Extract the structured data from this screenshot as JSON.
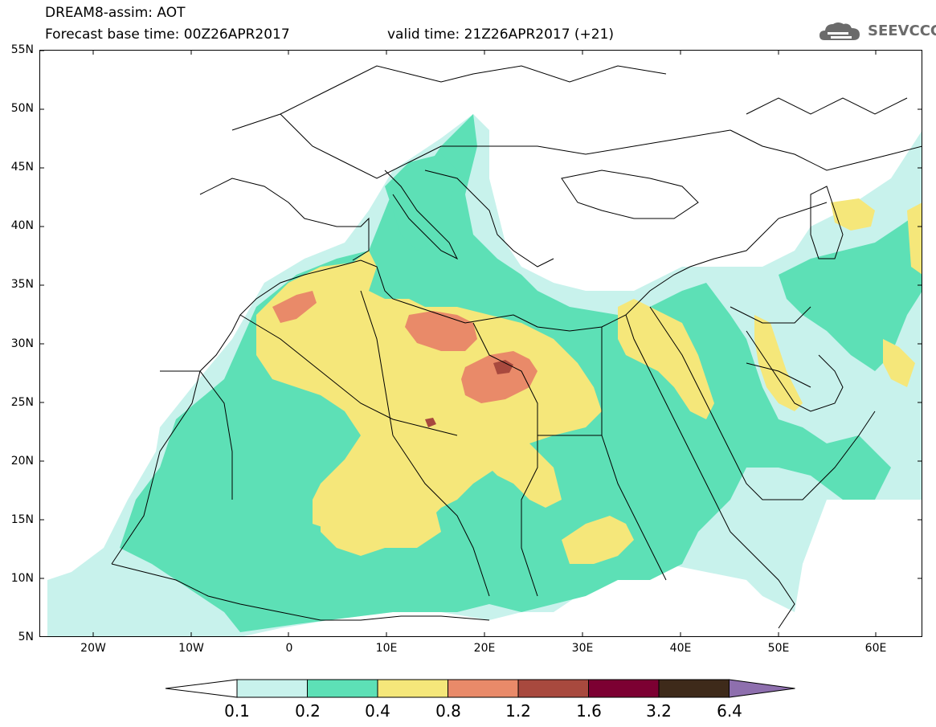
{
  "header": {
    "title_line1": "DREAM8-assim: AOT",
    "title_line2": "Forecast base time: 00Z26APR2017",
    "valid_time": "valid time: 21Z26APR2017 (+21)",
    "logo_text": "SEEVCCC",
    "logo_icon": "cloud-icon"
  },
  "axes": {
    "lat_labels": [
      "55N",
      "50N",
      "45N",
      "40N",
      "35N",
      "30N",
      "25N",
      "20N",
      "15N",
      "10N",
      "5N"
    ],
    "lon_labels": [
      "20W",
      "10W",
      "0",
      "10E",
      "20E",
      "30E",
      "40E",
      "50E",
      "60E"
    ]
  },
  "colorbar": {
    "levels": [
      "0.1",
      "0.2",
      "0.4",
      "0.8",
      "1.2",
      "1.6",
      "3.2",
      "6.4"
    ],
    "colors": [
      "#ffffff",
      "#c8f2ec",
      "#5de0b6",
      "#f5e77a",
      "#e98a69",
      "#a8493e",
      "#7c0032",
      "#3e2a1a",
      "#8e6fae"
    ]
  }
}
